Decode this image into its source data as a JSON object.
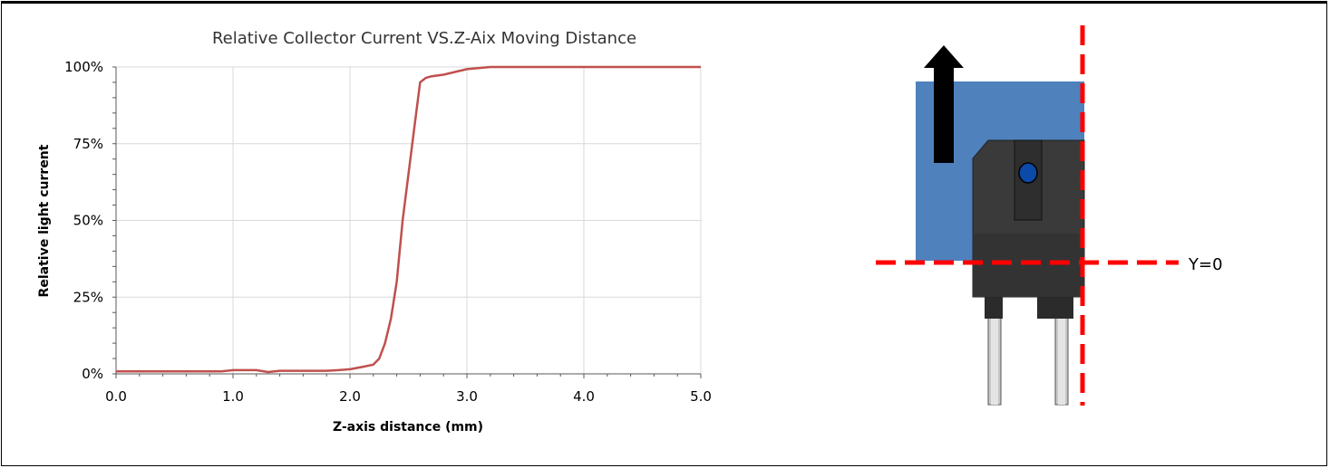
{
  "chart_data": {
    "type": "line",
    "title": "Relative Collector Current VS.Z-Aix Moving Distance",
    "xlabel": "Z-axis distance (mm)",
    "ylabel": "Relative light current",
    "xlim": [
      0,
      5
    ],
    "ylim": [
      0,
      1
    ],
    "x_ticks": [
      "0.0",
      "1.0",
      "2.0",
      "3.0",
      "4.0",
      "5.0"
    ],
    "y_ticks": [
      "0%",
      "25%",
      "50%",
      "75%",
      "100%"
    ],
    "grid": true,
    "legend": "none",
    "series": [
      {
        "color": "#c0504d",
        "x": [
          0.0,
          0.5,
          0.9,
          1.0,
          1.2,
          1.3,
          1.4,
          1.6,
          1.8,
          1.9,
          2.0,
          2.1,
          2.2,
          2.25,
          2.3,
          2.35,
          2.4,
          2.45,
          2.5,
          2.55,
          2.6,
          2.65,
          2.7,
          2.8,
          3.0,
          3.2,
          4.0,
          5.0
        ],
        "y": [
          0.008,
          0.008,
          0.008,
          0.012,
          0.012,
          0.006,
          0.01,
          0.01,
          0.01,
          0.012,
          0.015,
          0.022,
          0.03,
          0.05,
          0.1,
          0.18,
          0.3,
          0.5,
          0.65,
          0.8,
          0.95,
          0.965,
          0.97,
          0.975,
          0.993,
          1.0,
          1.0,
          1.0
        ]
      }
    ]
  },
  "diagram": {
    "y_label": "Y=0",
    "colors": {
      "blue_block": "#4f81bd",
      "sensor_body": "#3a3a3a",
      "lens": "#0b4aa8",
      "dashed_line": "#ff0000",
      "arrow": "#000000"
    },
    "icons": [
      "up-arrow-icon"
    ]
  }
}
